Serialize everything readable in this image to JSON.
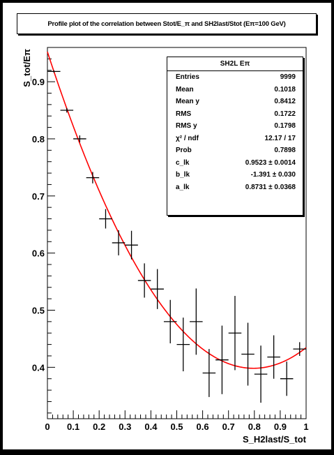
{
  "title": "Profile plot of the correlation between Stot/E_π and SH2last/Stot (Eπ=100 GeV)",
  "stats": {
    "header": "SH2L Eπ",
    "rows": [
      {
        "label": "Entries",
        "value": "9999"
      },
      {
        "label": "Mean",
        "value": "0.1018"
      },
      {
        "label": "Mean y",
        "value": "0.8412"
      },
      {
        "label": "RMS",
        "value": "0.1722"
      },
      {
        "label": "RMS y",
        "value": "0.1798"
      },
      {
        "label": "χ² / ndf",
        "value": "12.17 / 17"
      },
      {
        "label": "Prob",
        "value": "0.7898"
      },
      {
        "label": "c_lk",
        "value": "0.9523 ± 0.0014"
      },
      {
        "label": "b_lk",
        "value": "-1.391 ± 0.030"
      },
      {
        "label": "a_lk",
        "value": "0.8731 ± 0.0368"
      }
    ]
  },
  "chart_data": {
    "type": "scatter",
    "title": "Profile plot of the correlation between Stot/E_π and SH2last/Stot (Eπ=100 GeV)",
    "xlabel": "S_H2last/S_tot",
    "ylabel": "S_tot/Eπ",
    "xlim": [
      0,
      1
    ],
    "ylim": [
      0.31,
      0.96
    ],
    "x_ticks": [
      "0",
      "0.1",
      "0.2",
      "0.3",
      "0.4",
      "0.5",
      "0.6",
      "0.7",
      "0.8",
      "0.9",
      "1"
    ],
    "y_ticks": [
      "0.4",
      "0.5",
      "0.6",
      "0.7",
      "0.8",
      "0.9"
    ],
    "grid": false,
    "colors": {
      "points": "#000000",
      "fit": "#ff0000",
      "frame": "#000000"
    },
    "series": [
      {
        "kind": "profile-points",
        "x": [
          0.025,
          0.075,
          0.125,
          0.175,
          0.225,
          0.275,
          0.325,
          0.375,
          0.425,
          0.475,
          0.525,
          0.575,
          0.625,
          0.675,
          0.725,
          0.775,
          0.825,
          0.875,
          0.925,
          0.975
        ],
        "y": [
          0.918,
          0.85,
          0.8,
          0.732,
          0.66,
          0.618,
          0.614,
          0.552,
          0.537,
          0.48,
          0.44,
          0.48,
          0.39,
          0.413,
          0.46,
          0.423,
          0.388,
          0.418,
          0.38,
          0.432
        ],
        "y_err": [
          0.002,
          0.004,
          0.006,
          0.01,
          0.017,
          0.022,
          0.025,
          0.03,
          0.035,
          0.038,
          0.047,
          0.058,
          0.042,
          0.06,
          0.065,
          0.055,
          0.05,
          0.038,
          0.03,
          0.012
        ]
      },
      {
        "kind": "fit-curve",
        "function": "c_lk + b_lk*x + a_lk*x^2",
        "params": {
          "c_lk": 0.9523,
          "b_lk": -1.391,
          "a_lk": 0.8731
        },
        "x_range": [
          0,
          1
        ]
      }
    ]
  }
}
